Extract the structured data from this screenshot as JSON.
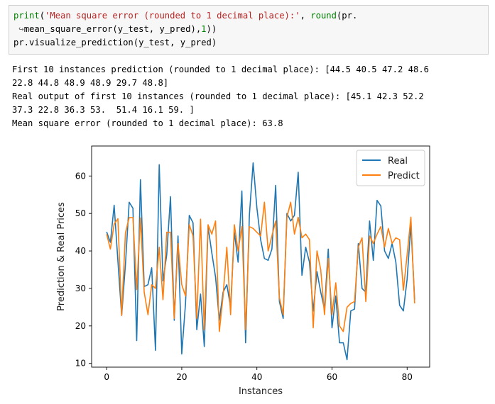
{
  "code": {
    "line1_fn": "print",
    "line1_paren": "(",
    "line1_str": "'Mean square error (rounded to 1 decimal place):'",
    "line1_rest": ", ",
    "line1_round": "round",
    "line1_tail": "(pr.",
    "line2_cont": " ↪",
    "line2_text": "mean_square_error(y_test, y_pred),",
    "line2_num": "1",
    "line2_end": "))",
    "line3": "pr.visualize_prediction(y_test, y_pred)"
  },
  "output": {
    "line1": "First 10 instances prediction (rounded to 1 decimal place): [44.5 40.5 47.2 48.6",
    "line2": "22.8 44.8 48.9 48.9 29.7 48.8]",
    "line3": "Real output of first 10 instances (rounded to 1 decimal place): [45.1 42.3 52.2",
    "line4": "37.3 22.8 36.3 53.  51.4 16.1 59. ]",
    "line5": "Mean square error (rounded to 1 decimal place): 63.8"
  },
  "chart_data": {
    "type": "line",
    "xlabel": "Instances",
    "ylabel": "Prediction & Real Prices",
    "xlim": [
      -4,
      86
    ],
    "ylim": [
      9,
      68
    ],
    "xticks": [
      0,
      20,
      40,
      60,
      80
    ],
    "yticks": [
      10,
      20,
      30,
      40,
      50,
      60
    ],
    "grid": false,
    "legend_position": "top-right",
    "series": [
      {
        "name": "Real",
        "color": "#1f77b4",
        "values": [
          45.1,
          42.3,
          52.2,
          37.3,
          22.8,
          36.3,
          53.0,
          51.4,
          16.1,
          59.0,
          30.5,
          31.0,
          35.5,
          13.5,
          63.0,
          32.0,
          39.0,
          54.5,
          21.5,
          44.0,
          12.5,
          26.0,
          49.5,
          47.5,
          19.0,
          28.5,
          14.5,
          46.5,
          39.5,
          33.0,
          21.5,
          29.0,
          31.0,
          25.0,
          45.0,
          37.0,
          56.0,
          15.5,
          49.5,
          63.5,
          51.5,
          43.0,
          38.0,
          37.5,
          40.5,
          57.5,
          26.5,
          22.0,
          50.0,
          48.0,
          49.5,
          61.0,
          33.5,
          41.0,
          37.0,
          24.0,
          34.5,
          29.0,
          24.5,
          40.5,
          19.5,
          28.0,
          15.5,
          15.5,
          11.0,
          24.0,
          24.5,
          42.0,
          30.0,
          29.0,
          48.0,
          37.5,
          53.5,
          52.0,
          40.0,
          38.0,
          42.0,
          37.0,
          25.5,
          24.0,
          32.5,
          47.0,
          27.0
        ]
      },
      {
        "name": "Predict",
        "color": "#ff7f0e",
        "values": [
          44.5,
          40.5,
          47.2,
          48.6,
          22.8,
          44.8,
          48.9,
          48.9,
          29.7,
          48.8,
          29.0,
          23.0,
          31.0,
          30.0,
          41.0,
          27.0,
          45.0,
          45.0,
          22.0,
          42.0,
          31.0,
          28.0,
          47.0,
          44.0,
          22.0,
          48.5,
          19.0,
          47.0,
          44.5,
          48.0,
          18.5,
          28.0,
          41.0,
          23.0,
          47.0,
          40.0,
          46.5,
          19.0,
          46.5,
          46.0,
          45.0,
          44.0,
          53.0,
          40.0,
          44.0,
          48.0,
          27.5,
          23.0,
          49.0,
          53.0,
          44.5,
          49.0,
          43.5,
          44.5,
          43.0,
          19.5,
          40.0,
          35.0,
          23.0,
          38.0,
          23.0,
          31.5,
          20.0,
          18.5,
          25.0,
          26.0,
          26.5,
          41.0,
          43.5,
          26.5,
          44.0,
          42.0,
          44.5,
          46.5,
          41.0,
          46.0,
          42.0,
          43.5,
          43.0,
          29.5,
          39.0,
          49.0,
          26.0
        ]
      }
    ]
  }
}
